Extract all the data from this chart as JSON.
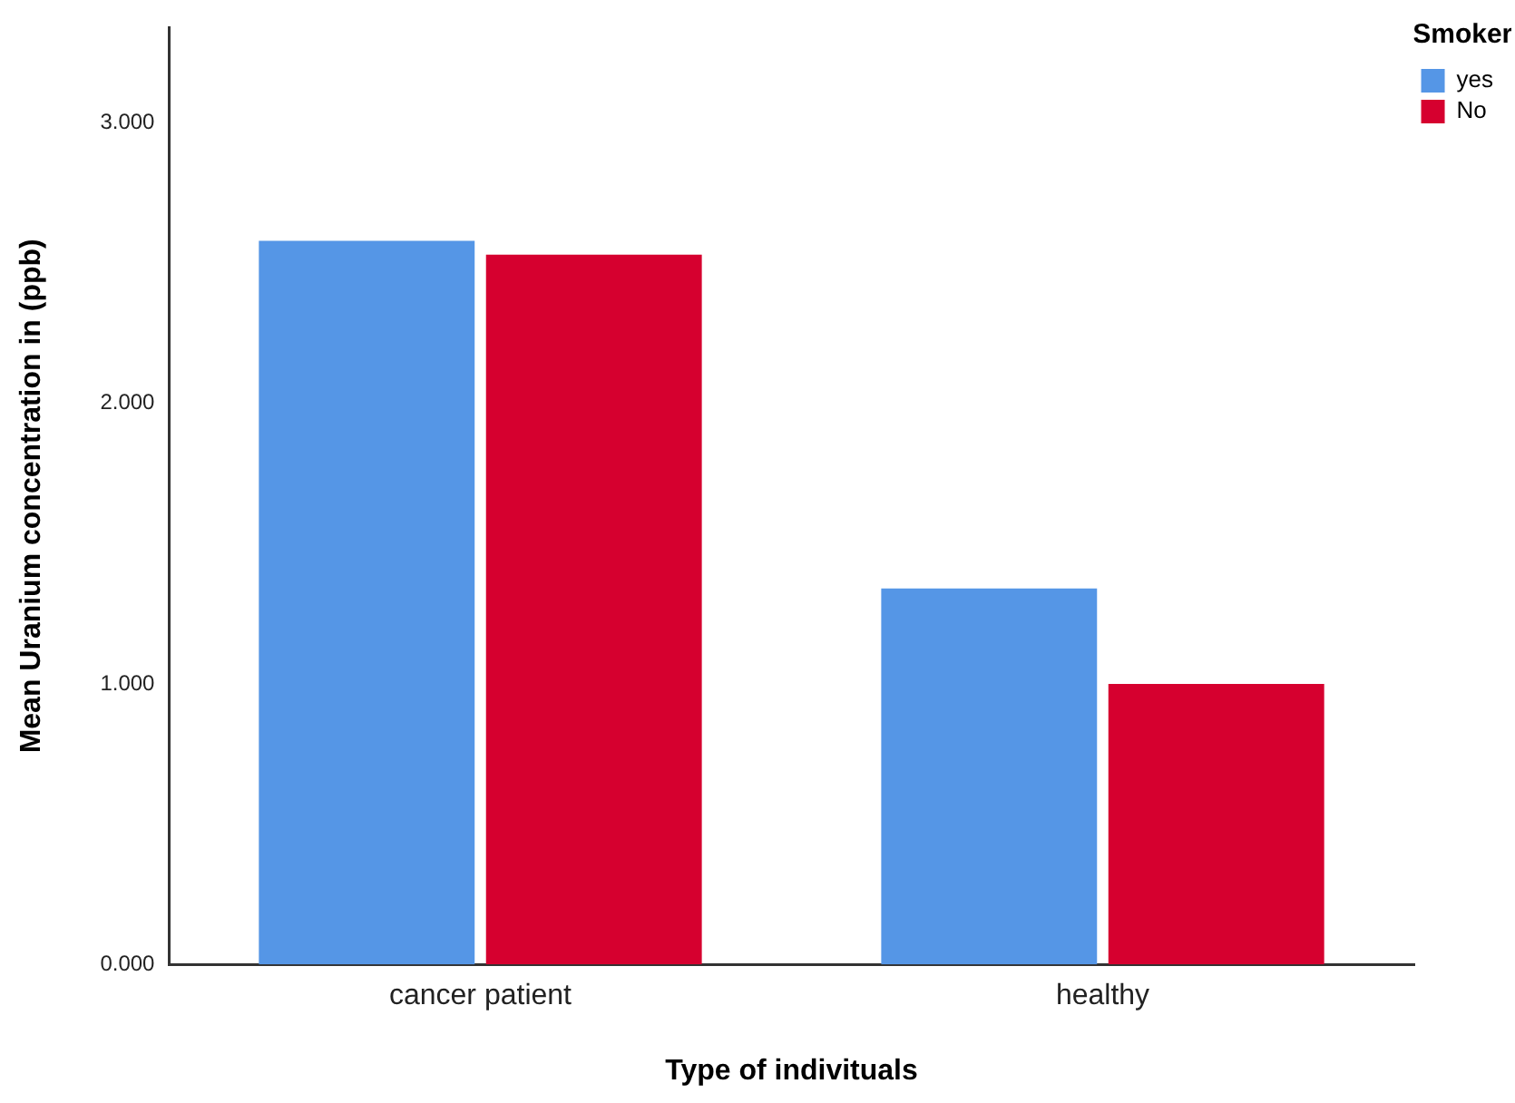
{
  "chart_data": {
    "type": "bar",
    "xlabel": "Type of indivituals",
    "ylabel": "Mean Uranium concentration in (ppb)",
    "legend_title": "Smoker",
    "categories": [
      "cancer patient",
      "healthy"
    ],
    "series": [
      {
        "name": "yes",
        "color": "#5596e6",
        "values": [
          2.58,
          1.34
        ]
      },
      {
        "name": "No",
        "color": "#d6002f",
        "values": [
          2.53,
          1.0
        ]
      }
    ],
    "ylim": [
      0,
      3.34
    ],
    "yticks": [
      {
        "value": 0,
        "label": "0.000"
      },
      {
        "value": 1,
        "label": "1.000"
      },
      {
        "value": 2,
        "label": "2.000"
      },
      {
        "value": 3,
        "label": "3.000"
      }
    ],
    "grid": false,
    "legend": "top right"
  }
}
